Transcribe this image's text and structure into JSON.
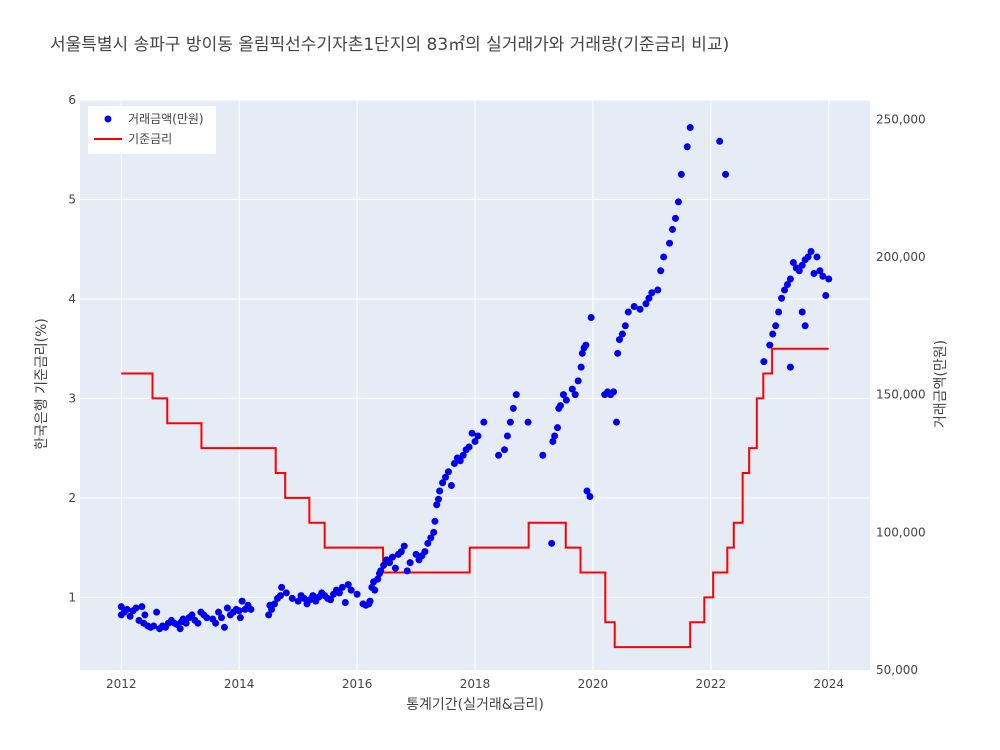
{
  "chart_data": {
    "type": "scatter+line",
    "title": "서울특별시 송파구 방이동 올림픽선수기자촌1단지의 83㎡의 실거래가와 거래량(기준금리 비교)",
    "xlabel": "통계기간(실거래&금리)",
    "ylabel_left": "한국은행 기준금리(%)",
    "ylabel_right": "거래금액(만원)",
    "x_ticks": [
      "2012",
      "2014",
      "2016",
      "2018",
      "2020",
      "2022",
      "2024"
    ],
    "y_left_ticks": [
      "1",
      "2",
      "3",
      "4",
      "5",
      "6"
    ],
    "y_right_ticks": [
      "50,000",
      "100,000",
      "150,000",
      "200,000",
      "250,000"
    ],
    "xlim": [
      2011.3,
      2024.7
    ],
    "ylim_left": [
      0.27,
      6
    ],
    "ylim_right": [
      50000,
      257000
    ],
    "grid": true,
    "legend_position": "top-left",
    "legend": [
      "거래금액(만원)",
      "기준금리"
    ],
    "colors": {
      "price": "#0000ee",
      "rate": "#ff0000"
    },
    "series": [
      {
        "name": "거래금액(만원)",
        "axis": "right",
        "mode": "markers",
        "points": [
          [
            2012.0,
            70000
          ],
          [
            2012.0,
            73000
          ],
          [
            2012.05,
            71000
          ],
          [
            2012.1,
            72000
          ],
          [
            2012.15,
            69500
          ],
          [
            2012.2,
            71500
          ],
          [
            2012.25,
            72500
          ],
          [
            2012.3,
            68000
          ],
          [
            2012.35,
            73000
          ],
          [
            2012.38,
            67000
          ],
          [
            2012.4,
            70000
          ],
          [
            2012.45,
            66000
          ],
          [
            2012.5,
            65500
          ],
          [
            2012.55,
            66000
          ],
          [
            2012.6,
            71000
          ],
          [
            2012.65,
            65000
          ],
          [
            2012.7,
            66000
          ],
          [
            2012.75,
            65500
          ],
          [
            2012.8,
            67000
          ],
          [
            2012.85,
            68000
          ],
          [
            2012.9,
            67000
          ],
          [
            2012.95,
            66500
          ],
          [
            2013.0,
            65000
          ],
          [
            2013.02,
            67500
          ],
          [
            2013.05,
            68500
          ],
          [
            2013.1,
            67000
          ],
          [
            2013.15,
            69000
          ],
          [
            2013.2,
            70000
          ],
          [
            2013.25,
            68000
          ],
          [
            2013.3,
            67000
          ],
          [
            2013.35,
            71000
          ],
          [
            2013.4,
            70000
          ],
          [
            2013.45,
            69000
          ],
          [
            2013.55,
            68500
          ],
          [
            2013.6,
            67000
          ],
          [
            2013.65,
            71000
          ],
          [
            2013.7,
            69000
          ],
          [
            2013.75,
            65500
          ],
          [
            2013.8,
            72500
          ],
          [
            2013.85,
            70000
          ],
          [
            2013.9,
            71000
          ],
          [
            2013.95,
            72000
          ],
          [
            2014.0,
            71500
          ],
          [
            2014.02,
            69000
          ],
          [
            2014.05,
            75000
          ],
          [
            2014.1,
            72000
          ],
          [
            2014.15,
            73500
          ],
          [
            2014.2,
            72000
          ],
          [
            2014.5,
            70000
          ],
          [
            2014.52,
            73500
          ],
          [
            2014.55,
            72000
          ],
          [
            2014.6,
            74000
          ],
          [
            2014.65,
            76000
          ],
          [
            2014.7,
            77000
          ],
          [
            2014.72,
            80000
          ],
          [
            2014.8,
            78000
          ],
          [
            2014.9,
            76000
          ],
          [
            2015.0,
            75000
          ],
          [
            2015.05,
            77000
          ],
          [
            2015.1,
            76000
          ],
          [
            2015.15,
            74000
          ],
          [
            2015.2,
            75500
          ],
          [
            2015.25,
            77000
          ],
          [
            2015.3,
            75000
          ],
          [
            2015.35,
            76500
          ],
          [
            2015.4,
            78000
          ],
          [
            2015.45,
            77000
          ],
          [
            2015.5,
            76000
          ],
          [
            2015.55,
            75500
          ],
          [
            2015.6,
            77500
          ],
          [
            2015.65,
            79000
          ],
          [
            2015.7,
            78000
          ],
          [
            2015.75,
            80000
          ],
          [
            2015.8,
            74500
          ],
          [
            2015.85,
            81000
          ],
          [
            2015.9,
            79000
          ],
          [
            2016.0,
            77500
          ],
          [
            2016.1,
            74000
          ],
          [
            2016.15,
            73500
          ],
          [
            2016.2,
            74000
          ],
          [
            2016.22,
            75000
          ],
          [
            2016.25,
            80000
          ],
          [
            2016.28,
            82000
          ],
          [
            2016.3,
            79000
          ],
          [
            2016.35,
            83000
          ],
          [
            2016.38,
            85000
          ],
          [
            2016.4,
            86000
          ],
          [
            2016.45,
            88000
          ],
          [
            2016.5,
            90000
          ],
          [
            2016.55,
            89000
          ],
          [
            2016.6,
            91000
          ],
          [
            2016.65,
            87000
          ],
          [
            2016.7,
            92000
          ],
          [
            2016.75,
            93000
          ],
          [
            2016.8,
            95000
          ],
          [
            2016.85,
            86000
          ],
          [
            2016.9,
            89000
          ],
          [
            2017.0,
            92000
          ],
          [
            2017.05,
            90000
          ],
          [
            2017.1,
            91500
          ],
          [
            2017.15,
            93000
          ],
          [
            2017.2,
            96000
          ],
          [
            2017.25,
            98000
          ],
          [
            2017.3,
            100000
          ],
          [
            2017.32,
            104000
          ],
          [
            2017.35,
            110000
          ],
          [
            2017.38,
            112000
          ],
          [
            2017.4,
            115000
          ],
          [
            2017.45,
            118000
          ],
          [
            2017.5,
            120000
          ],
          [
            2017.55,
            122000
          ],
          [
            2017.6,
            117000
          ],
          [
            2017.65,
            125000
          ],
          [
            2017.7,
            127000
          ],
          [
            2017.75,
            126000
          ],
          [
            2017.8,
            128000
          ],
          [
            2017.85,
            130000
          ],
          [
            2017.9,
            131000
          ],
          [
            2017.95,
            136000
          ],
          [
            2018.0,
            133000
          ],
          [
            2018.05,
            135000
          ],
          [
            2018.15,
            140000
          ],
          [
            2018.4,
            128000
          ],
          [
            2018.5,
            130000
          ],
          [
            2018.55,
            135000
          ],
          [
            2018.6,
            140000
          ],
          [
            2018.65,
            145000
          ],
          [
            2018.7,
            150000
          ],
          [
            2018.9,
            140000
          ],
          [
            2019.15,
            128000
          ],
          [
            2019.3,
            96000
          ],
          [
            2019.32,
            133000
          ],
          [
            2019.35,
            135000
          ],
          [
            2019.4,
            138000
          ],
          [
            2019.42,
            145000
          ],
          [
            2019.45,
            146000
          ],
          [
            2019.5,
            150000
          ],
          [
            2019.55,
            148000
          ],
          [
            2019.65,
            152000
          ],
          [
            2019.7,
            150000
          ],
          [
            2019.75,
            155000
          ],
          [
            2019.8,
            160000
          ],
          [
            2019.82,
            165000
          ],
          [
            2019.85,
            167000
          ],
          [
            2019.88,
            168000
          ],
          [
            2019.9,
            115000
          ],
          [
            2019.95,
            113000
          ],
          [
            2019.97,
            178000
          ],
          [
            2020.2,
            150000
          ],
          [
            2020.25,
            151000
          ],
          [
            2020.3,
            150000
          ],
          [
            2020.35,
            151000
          ],
          [
            2020.4,
            140000
          ],
          [
            2020.42,
            165000
          ],
          [
            2020.45,
            170000
          ],
          [
            2020.5,
            172000
          ],
          [
            2020.55,
            175000
          ],
          [
            2020.6,
            180000
          ],
          [
            2020.7,
            182000
          ],
          [
            2020.8,
            181000
          ],
          [
            2020.9,
            183000
          ],
          [
            2020.95,
            185000
          ],
          [
            2021.0,
            187000
          ],
          [
            2021.1,
            188000
          ],
          [
            2021.15,
            195000
          ],
          [
            2021.2,
            200000
          ],
          [
            2021.3,
            205000
          ],
          [
            2021.35,
            210000
          ],
          [
            2021.4,
            214000
          ],
          [
            2021.45,
            220000
          ],
          [
            2021.5,
            230000
          ],
          [
            2021.6,
            240000
          ],
          [
            2021.65,
            247000
          ],
          [
            2022.15,
            242000
          ],
          [
            2022.25,
            230000
          ],
          [
            2022.9,
            162000
          ],
          [
            2023.0,
            168000
          ],
          [
            2023.05,
            172000
          ],
          [
            2023.1,
            175000
          ],
          [
            2023.15,
            180000
          ],
          [
            2023.2,
            185000
          ],
          [
            2023.25,
            188000
          ],
          [
            2023.3,
            190000
          ],
          [
            2023.35,
            192000
          ],
          [
            2023.4,
            198000
          ],
          [
            2023.45,
            196000
          ],
          [
            2023.5,
            195000
          ],
          [
            2023.55,
            197000
          ],
          [
            2023.6,
            199000
          ],
          [
            2023.65,
            200000
          ],
          [
            2023.7,
            202000
          ],
          [
            2023.75,
            194000
          ],
          [
            2023.8,
            200000
          ],
          [
            2023.85,
            195000
          ],
          [
            2023.9,
            193000
          ],
          [
            2023.95,
            186000
          ],
          [
            2024.0,
            192000
          ],
          [
            2023.35,
            160000
          ],
          [
            2023.55,
            180000
          ],
          [
            2023.6,
            175000
          ]
        ]
      },
      {
        "name": "기준금리",
        "axis": "left",
        "mode": "lines",
        "step": true,
        "points": [
          [
            2012.0,
            3.25
          ],
          [
            2012.53,
            3.0
          ],
          [
            2012.78,
            2.75
          ],
          [
            2013.36,
            2.5
          ],
          [
            2014.62,
            2.25
          ],
          [
            2014.78,
            2.0
          ],
          [
            2015.19,
            1.75
          ],
          [
            2015.45,
            1.5
          ],
          [
            2016.44,
            1.25
          ],
          [
            2017.91,
            1.5
          ],
          [
            2018.91,
            1.75
          ],
          [
            2019.54,
            1.5
          ],
          [
            2019.79,
            1.25
          ],
          [
            2020.21,
            0.75
          ],
          [
            2020.37,
            0.5
          ],
          [
            2021.65,
            0.75
          ],
          [
            2021.89,
            1.0
          ],
          [
            2022.04,
            1.25
          ],
          [
            2022.28,
            1.5
          ],
          [
            2022.39,
            1.75
          ],
          [
            2022.54,
            2.25
          ],
          [
            2022.65,
            2.5
          ],
          [
            2022.78,
            3.0
          ],
          [
            2022.89,
            3.25
          ],
          [
            2023.04,
            3.5
          ],
          [
            2024.0,
            3.5
          ]
        ]
      }
    ]
  }
}
